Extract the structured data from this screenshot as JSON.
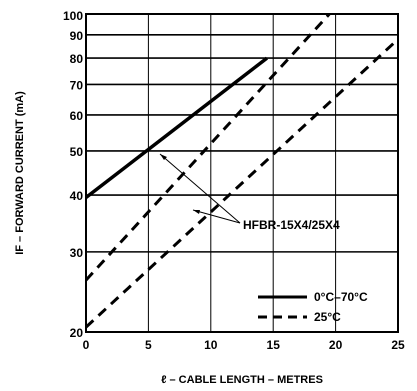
{
  "chart_data": {
    "type": "line",
    "xlabel": "ℓ – CABLE LENGTH – METRES",
    "ylabel": "IF – FORWARD CURRENT (mA)",
    "xlim": [
      0,
      25
    ],
    "ylim": [
      20,
      100
    ],
    "yscale": "log",
    "x_ticks": [
      0,
      5,
      10,
      15,
      20,
      25
    ],
    "y_ticks": [
      20,
      30,
      40,
      50,
      60,
      70,
      80,
      90,
      100
    ],
    "y_tick_labels": [
      "20",
      "30",
      "40",
      "50",
      "60",
      "70",
      "80",
      "90",
      "100"
    ],
    "grid": true,
    "legend_position": "bottom-right",
    "annotation": "HFBR-15X4/25X4",
    "series": [
      {
        "name": "0°C–70°C",
        "style": "solid",
        "color": "#000000",
        "x": [
          0,
          14.5
        ],
        "y": [
          39.5,
          80
        ]
      },
      {
        "name": "25°C",
        "style": "dashed",
        "color": "#000000",
        "x": [
          0,
          19.5,
          25
        ],
        "y": [
          26,
          100,
          88
        ],
        "x_upper": [
          0,
          19.5
        ],
        "y_upper": [
          26,
          100
        ],
        "x_lower": [
          0,
          25
        ],
        "y_lower": [
          20.5,
          88
        ]
      }
    ]
  }
}
